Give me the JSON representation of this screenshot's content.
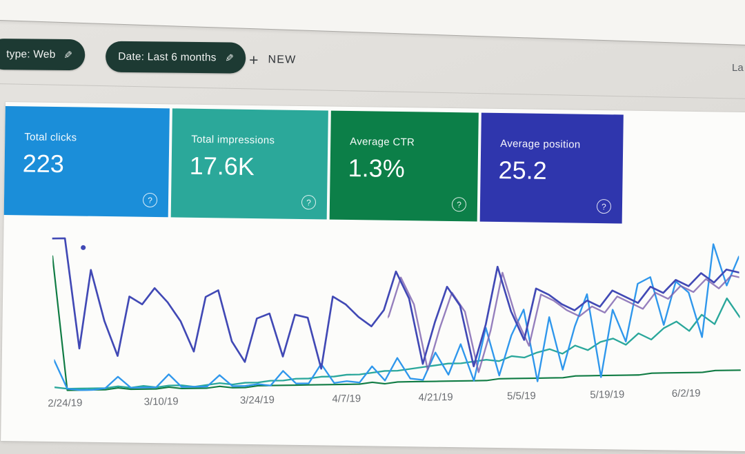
{
  "toolbar": {
    "chips": [
      {
        "label": "type: Web"
      },
      {
        "label": "Date: Last 6 months"
      }
    ],
    "new_button": {
      "label": "NEW"
    },
    "top_right_partial": "La"
  },
  "icons": {
    "edit_pencil": "✎",
    "plus": "+",
    "help": "?"
  },
  "cards": [
    {
      "label": "Total clicks",
      "value": "223",
      "color": "#1b8ed9"
    },
    {
      "label": "Total impressions",
      "value": "17.6K",
      "color": "#2ba89a"
    },
    {
      "label": "Average CTR",
      "value": "1.3%",
      "color": "#0c7f48"
    },
    {
      "label": "Average position",
      "value": "25.2",
      "color": "#2f36ad"
    }
  ],
  "chart_data": {
    "type": "line",
    "title": "",
    "xlabel": "",
    "ylabel": "",
    "grid": false,
    "legend": "none",
    "ylim": [
      0,
      100
    ],
    "x_tick_labels": [
      "2/24/19",
      "3/10/19",
      "3/24/19",
      "4/7/19",
      "4/21/19",
      "5/5/19",
      "5/19/19",
      "6/2/19"
    ],
    "x_tick_positions_pct": [
      1.5,
      15.5,
      29.5,
      42.5,
      55.5,
      68,
      80.5,
      92
    ],
    "series": [
      {
        "name": "CTR",
        "color": "#0f7b43",
        "values": [
          85,
          1,
          1,
          1,
          1,
          2,
          1,
          1,
          1,
          2,
          1,
          1,
          1,
          2,
          1,
          1,
          2,
          2,
          2,
          2,
          2,
          2,
          2,
          2,
          2,
          3,
          2,
          3,
          3,
          3,
          3,
          3,
          3,
          3,
          3,
          4,
          4,
          4,
          4,
          4,
          4,
          5,
          5,
          5,
          5,
          5,
          5,
          6,
          6,
          6,
          6,
          6,
          7,
          7,
          7
        ]
      },
      {
        "name": "Impressions",
        "color": "#2aa79b",
        "values": [
          3,
          2,
          2,
          2,
          2,
          3,
          2,
          3,
          2,
          3,
          3,
          2,
          3,
          4,
          3,
          4,
          4,
          5,
          5,
          6,
          6,
          7,
          7,
          8,
          8,
          9,
          10,
          10,
          11,
          12,
          13,
          14,
          14,
          15,
          16,
          15,
          18,
          17,
          20,
          22,
          19,
          24,
          21,
          26,
          28,
          24,
          31,
          27,
          34,
          38,
          32,
          42,
          36,
          52,
          40
        ]
      },
      {
        "name": "Clicks",
        "color": "#2f97ec",
        "values": [
          20,
          2,
          1,
          1,
          2,
          9,
          2,
          2,
          2,
          10,
          2,
          2,
          2,
          9,
          2,
          2,
          3,
          2,
          11,
          3,
          3,
          15,
          3,
          4,
          3,
          13,
          4,
          18,
          5,
          4,
          21,
          7,
          26,
          3,
          36,
          6,
          31,
          47,
          2,
          42,
          9,
          36,
          56,
          4,
          46,
          26,
          62,
          66,
          36,
          63,
          56,
          28,
          86,
          60,
          78
        ]
      },
      {
        "name": "Position",
        "color": "#4149b5",
        "values": [
          96,
          96,
          27,
          76,
          44,
          22,
          59,
          54,
          64,
          55,
          43,
          24,
          58,
          62,
          30,
          17,
          44,
          47,
          20,
          46,
          44,
          12,
          57,
          52,
          44,
          38,
          48,
          72,
          55,
          14,
          40,
          62,
          50,
          12,
          38,
          74,
          46,
          28,
          60,
          56,
          50,
          46,
          52,
          48,
          58,
          54,
          50,
          60,
          56,
          64,
          60,
          68,
          62,
          70,
          68
        ]
      }
    ],
    "isolated_point": {
      "series": "Position",
      "x_frac": 0.045,
      "value": 90
    }
  }
}
